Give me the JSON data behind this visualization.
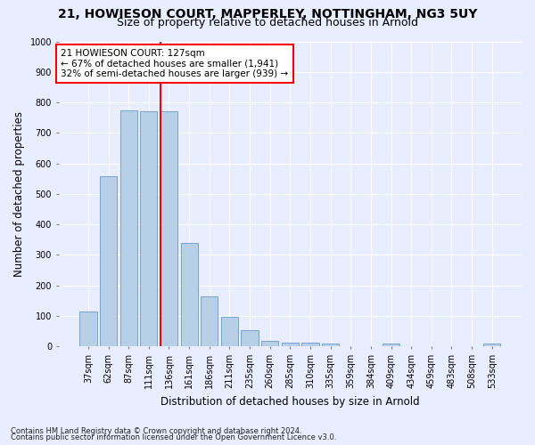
{
  "title_line1": "21, HOWIESON COURT, MAPPERLEY, NOTTINGHAM, NG3 5UY",
  "title_line2": "Size of property relative to detached houses in Arnold",
  "xlabel": "Distribution of detached houses by size in Arnold",
  "ylabel": "Number of detached properties",
  "bar_labels": [
    "37sqm",
    "62sqm",
    "87sqm",
    "111sqm",
    "136sqm",
    "161sqm",
    "186sqm",
    "211sqm",
    "235sqm",
    "260sqm",
    "285sqm",
    "310sqm",
    "335sqm",
    "359sqm",
    "384sqm",
    "409sqm",
    "434sqm",
    "459sqm",
    "483sqm",
    "508sqm",
    "533sqm"
  ],
  "bar_values": [
    113,
    557,
    775,
    770,
    770,
    340,
    163,
    97,
    54,
    18,
    13,
    13,
    10,
    0,
    0,
    9,
    0,
    0,
    0,
    0,
    9
  ],
  "bar_color": "#b8cfe8",
  "bar_edgecolor": "#6699cc",
  "vline_color": "red",
  "vline_x": 3.575,
  "annotation_text": "21 HOWIESON COURT: 127sqm\n← 67% of detached houses are smaller (1,941)\n32% of semi-detached houses are larger (939) →",
  "annotation_box_color": "white",
  "annotation_box_edgecolor": "red",
  "ylim": [
    0,
    1000
  ],
  "yticks": [
    0,
    100,
    200,
    300,
    400,
    500,
    600,
    700,
    800,
    900,
    1000
  ],
  "background_color": "#e8eeff",
  "plot_background": "#e8eeff",
  "footer_line1": "Contains HM Land Registry data © Crown copyright and database right 2024.",
  "footer_line2": "Contains public sector information licensed under the Open Government Licence v3.0.",
  "title_fontsize": 10,
  "subtitle_fontsize": 9,
  "axis_label_fontsize": 8.5,
  "tick_fontsize": 7,
  "annotation_fontsize": 7.5,
  "footer_fontsize": 6
}
